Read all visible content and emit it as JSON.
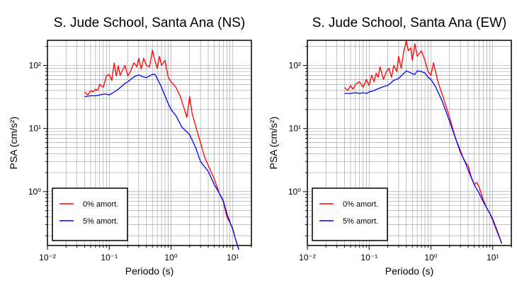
{
  "chart_data": [
    {
      "type": "line",
      "title": "S. Jude School, Santa Ana (NS)",
      "xlabel": "Periodo (s)",
      "ylabel": "PSA (cm/s²)",
      "xscale": "log",
      "yscale": "log",
      "xlim": [
        0.01,
        20
      ],
      "ylim": [
        0.14,
        250
      ],
      "xticks": [
        "10⁻²",
        "10⁻¹",
        "10⁰",
        "10¹"
      ],
      "yticks": [
        "10⁰",
        "10¹",
        "10²"
      ],
      "grid": true,
      "legend_position": "bottom-left",
      "series": [
        {
          "name": "0% amort.",
          "color": "#ff0000",
          "x": [
            0.04,
            0.045,
            0.05,
            0.055,
            0.06,
            0.065,
            0.07,
            0.08,
            0.09,
            0.1,
            0.11,
            0.12,
            0.13,
            0.14,
            0.15,
            0.16,
            0.18,
            0.2,
            0.22,
            0.25,
            0.28,
            0.3,
            0.33,
            0.36,
            0.4,
            0.45,
            0.5,
            0.55,
            0.6,
            0.65,
            0.7,
            0.8,
            0.9,
            1.0,
            1.2,
            1.4,
            1.6,
            1.8,
            2.0,
            2.2,
            2.5,
            3.0,
            3.5,
            4.0,
            5.0,
            6.0,
            7.0,
            8.0,
            9.0,
            10.0,
            11.0,
            12.5
          ],
          "y": [
            38,
            34,
            40,
            38,
            42,
            40,
            50,
            45,
            68,
            72,
            58,
            110,
            68,
            98,
            70,
            80,
            100,
            68,
            80,
            110,
            95,
            130,
            88,
            130,
            100,
            95,
            175,
            120,
            90,
            140,
            100,
            120,
            65,
            55,
            45,
            33,
            22,
            15,
            32,
            17,
            11,
            6,
            3.5,
            2.6,
            1.6,
            0.95,
            0.7,
            0.4,
            0.32,
            0.26,
            0.18,
            0.12
          ]
        },
        {
          "name": "5% amort.",
          "color": "#0000ff",
          "x": [
            0.04,
            0.05,
            0.06,
            0.07,
            0.08,
            0.09,
            0.1,
            0.12,
            0.14,
            0.16,
            0.18,
            0.2,
            0.25,
            0.3,
            0.35,
            0.4,
            0.45,
            0.5,
            0.55,
            0.6,
            0.7,
            0.8,
            0.9,
            1.0,
            1.2,
            1.5,
            2.0,
            2.5,
            3.0,
            4.0,
            5.0,
            6.0,
            7.0,
            8.0,
            9.0,
            10.0,
            11.0,
            12.5
          ],
          "y": [
            32,
            33,
            33,
            34,
            35,
            35,
            34,
            38,
            42,
            47,
            52,
            55,
            66,
            71,
            66,
            64,
            68,
            72,
            72,
            62,
            45,
            33,
            25,
            20,
            16,
            10.5,
            8,
            5,
            3,
            2.1,
            1.3,
            0.95,
            0.72,
            0.45,
            0.33,
            0.25,
            0.18,
            0.12
          ]
        }
      ]
    },
    {
      "type": "line",
      "title": "S. Jude School, Santa Ana (EW)",
      "xlabel": "Periodo (s)",
      "ylabel": "PSA (cm/s²)",
      "xscale": "log",
      "yscale": "log",
      "xlim": [
        0.01,
        20
      ],
      "ylim": [
        0.14,
        250
      ],
      "xticks": [
        "10⁻²",
        "10⁻¹",
        "10⁰",
        "10¹"
      ],
      "yticks": [
        "10⁰",
        "10¹",
        "10²"
      ],
      "grid": true,
      "legend_position": "bottom-left",
      "series": [
        {
          "name": "0% amort.",
          "color": "#ff0000",
          "x": [
            0.04,
            0.045,
            0.05,
            0.055,
            0.06,
            0.07,
            0.08,
            0.09,
            0.1,
            0.11,
            0.12,
            0.13,
            0.14,
            0.15,
            0.17,
            0.19,
            0.21,
            0.23,
            0.25,
            0.28,
            0.3,
            0.33,
            0.36,
            0.4,
            0.43,
            0.47,
            0.5,
            0.55,
            0.6,
            0.7,
            0.8,
            0.9,
            1.0,
            1.1,
            1.3,
            1.6,
            2.0,
            2.5,
            3.0,
            3.5,
            4.0,
            4.5,
            5.0,
            5.5,
            6.0,
            7.0,
            8.0,
            9.0,
            10.0,
            12.0,
            14.0
          ],
          "y": [
            45,
            40,
            48,
            42,
            50,
            55,
            45,
            60,
            48,
            70,
            55,
            75,
            65,
            95,
            60,
            80,
            90,
            65,
            100,
            80,
            140,
            90,
            160,
            250,
            170,
            190,
            120,
            220,
            140,
            170,
            120,
            80,
            70,
            110,
            55,
            30,
            15,
            7,
            4.5,
            3,
            2.6,
            1.7,
            1.3,
            1.4,
            1.2,
            0.75,
            0.55,
            0.45,
            0.35,
            0.22,
            0.15
          ]
        },
        {
          "name": "5% amort.",
          "color": "#0000ff",
          "x": [
            0.04,
            0.05,
            0.06,
            0.07,
            0.08,
            0.09,
            0.1,
            0.12,
            0.14,
            0.16,
            0.18,
            0.2,
            0.25,
            0.3,
            0.35,
            0.4,
            0.45,
            0.5,
            0.55,
            0.6,
            0.7,
            0.8,
            0.9,
            1.0,
            1.2,
            1.5,
            2.0,
            2.5,
            3.0,
            3.5,
            4.0,
            5.0,
            6.0,
            7.0,
            8.0,
            9.0,
            10.0,
            12.0,
            14.0
          ],
          "y": [
            36,
            36,
            37,
            36,
            37,
            36,
            38,
            40,
            43,
            45,
            47,
            48,
            58,
            62,
            72,
            82,
            78,
            74,
            72,
            82,
            80,
            76,
            65,
            60,
            45,
            28,
            13,
            7,
            4.2,
            3.1,
            2.2,
            1.3,
            0.95,
            0.7,
            0.55,
            0.45,
            0.37,
            0.23,
            0.15
          ]
        }
      ]
    }
  ]
}
